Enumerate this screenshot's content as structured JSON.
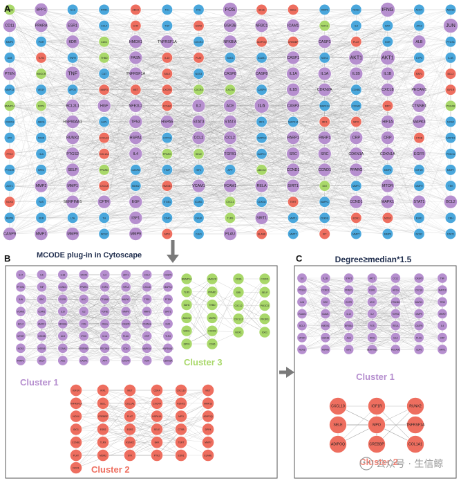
{
  "panels": {
    "a": {
      "letter": "A"
    },
    "b": {
      "letter": "B",
      "caption": "MCODE plug-in in Cytoscape"
    },
    "c": {
      "letter": "C",
      "title": "Degree≥median*1.5"
    }
  },
  "clusters": {
    "cluster1_b": "Cluster 1",
    "cluster2_b": "Cluster 2",
    "cluster3_b": "Cluster 3",
    "cluster1_c": "Cluster 1",
    "cluster2_c": "Cluster 2"
  },
  "watermark": "公众号 · 生信鲸",
  "colors": {
    "purple": "#b68fcf",
    "blue": "#4aa7dc",
    "red": "#ee6e5f",
    "green": "#a9d86a",
    "edge": "#8c8c8c",
    "frame": "#555555",
    "arrow": "#7a7a7a"
  },
  "panel_a": {
    "columns": [
      [
        [
          "CD36",
          "green"
        ],
        [
          "CD11",
          "purple"
        ],
        [
          "MMP2",
          "blue"
        ],
        [
          "ALB",
          "blue"
        ],
        [
          "PTEN",
          "purple"
        ],
        [
          "MMP13",
          "blue"
        ],
        [
          "BMMP14",
          "green"
        ],
        [
          "CDKN1",
          "blue"
        ],
        [
          "ATK",
          "blue"
        ],
        [
          "PTK2",
          "red"
        ],
        [
          "PTGDR",
          "blue"
        ],
        [
          "AGT1",
          "blue"
        ],
        [
          "NOX4",
          "red"
        ],
        [
          "RBPM",
          "blue"
        ],
        [
          "CASP9",
          "purple"
        ]
      ],
      [
        [
          "BPP1",
          "purple"
        ],
        [
          "PPARA",
          "purple"
        ],
        [
          "PGR",
          "blue"
        ],
        [
          "TLR4",
          "red"
        ],
        [
          "HMGCR",
          "green"
        ],
        [
          "VEGF",
          "blue"
        ],
        [
          "DPP4",
          "green"
        ],
        [
          "ABCA",
          "blue"
        ],
        [
          "FASN",
          "blue"
        ],
        [
          "HLA",
          "blue"
        ],
        [
          "NFE2",
          "blue"
        ],
        [
          "MMP2",
          "purple"
        ],
        [
          "FAS",
          "blue"
        ],
        [
          "KDR",
          "blue"
        ],
        [
          "MMP1",
          "purple"
        ]
      ],
      [
        [
          "IL18",
          "blue"
        ],
        [
          "ESR1",
          "purple"
        ],
        [
          "KDR",
          "purple"
        ],
        [
          "TNFR",
          "blue"
        ],
        [
          "TNF",
          "purple"
        ],
        [
          "APOE",
          "blue"
        ],
        [
          "BCL2L1",
          "purple"
        ],
        [
          "HSP90AA1",
          "purple"
        ],
        [
          "RUNX2",
          "purple"
        ],
        [
          "PTGS2",
          "purple"
        ],
        [
          "SELP",
          "purple"
        ],
        [
          "MMP1",
          "purple"
        ],
        [
          "SERPINE1",
          "purple"
        ],
        [
          "LTA",
          "blue"
        ],
        [
          "MMP9",
          "purple"
        ]
      ],
      [
        [
          "NTRK",
          "blue"
        ],
        [
          "CCL4",
          "blue"
        ],
        [
          "CAV1",
          "green"
        ],
        [
          "THBD",
          "green"
        ],
        [
          "CAT",
          "blue"
        ],
        [
          "MMP3",
          "red"
        ],
        [
          "HGF",
          "purple"
        ],
        [
          "ALPL",
          "blue"
        ],
        [
          "CXCL10",
          "red"
        ],
        [
          "COL1A1",
          "red"
        ],
        [
          "PPARD",
          "green"
        ],
        [
          "CXCL8",
          "red"
        ],
        [
          "CFTR",
          "purple"
        ],
        [
          "TH",
          "blue"
        ],
        [
          "NOS2",
          "blue"
        ]
      ],
      [
        [
          "ABCA",
          "red"
        ],
        [
          "CHK",
          "red"
        ],
        [
          "HMOX1",
          "purple"
        ],
        [
          "FASN",
          "purple"
        ],
        [
          "TNFRSF1A",
          "purple"
        ],
        [
          "MET",
          "red"
        ],
        [
          "NFE2L2",
          "purple"
        ],
        [
          "TP53",
          "purple"
        ],
        [
          "HSPA1",
          "purple"
        ],
        [
          "IL4",
          "purple"
        ],
        [
          "CASP8",
          "blue"
        ],
        [
          "MDM2",
          "blue"
        ],
        [
          "EGF",
          "purple"
        ],
        [
          "IGF1",
          "purple"
        ],
        [
          "MMP9",
          "purple"
        ]
      ],
      [
        [
          "TK1",
          "blue"
        ],
        [
          "TGF",
          "blue"
        ],
        [
          "TNFRSF1A",
          "purple"
        ],
        [
          "IL10",
          "red"
        ],
        [
          "SELE",
          "red"
        ],
        [
          "CXCR4",
          "red"
        ],
        [
          "CCNA2",
          "red"
        ],
        [
          "HSPA5",
          "purple"
        ],
        [
          "CYP19",
          "blue"
        ],
        [
          "PPARG",
          "green"
        ],
        [
          "TIMP",
          "blue"
        ],
        [
          "HMGB1",
          "red"
        ],
        [
          "ITGB1",
          "blue"
        ],
        [
          "CD40",
          "blue"
        ],
        [
          "MPO",
          "red"
        ]
      ],
      [
        [
          "FN1",
          "blue"
        ],
        [
          "ESR2",
          "red"
        ],
        [
          "CXCR4",
          "blue"
        ],
        [
          "PLAT",
          "red"
        ],
        [
          "NOS3",
          "blue"
        ],
        [
          "CXCR4",
          "green"
        ],
        [
          "IL2",
          "purple"
        ],
        [
          "STAT3",
          "purple"
        ],
        [
          "CCL2",
          "purple"
        ],
        [
          "SELE",
          "green"
        ],
        [
          "HIF1",
          "blue"
        ],
        [
          "VCAM1",
          "purple"
        ],
        [
          "ICAM1",
          "blue"
        ],
        [
          "CHUK",
          "blue"
        ],
        [
          "CAV1",
          "blue"
        ]
      ],
      [
        [
          "FOS",
          "purple"
        ],
        [
          "GSK3B",
          "purple"
        ],
        [
          "NFKBIA",
          "purple"
        ],
        [
          "SOD1",
          "blue"
        ],
        [
          "CASP8",
          "purple"
        ],
        [
          "CXCR4",
          "green"
        ],
        [
          "ACE",
          "purple"
        ],
        [
          "STAT3",
          "purple"
        ],
        [
          "CCL2",
          "purple"
        ],
        [
          "TGFB1",
          "purple"
        ],
        [
          "APP",
          "blue"
        ],
        [
          "VCAM1",
          "purple"
        ],
        [
          "CXCL1",
          "green"
        ],
        [
          "TLR9",
          "green"
        ],
        [
          "PLAU",
          "purple"
        ]
      ],
      [
        [
          "SELE",
          "red"
        ],
        [
          "NR3C1",
          "purple"
        ],
        [
          "ADIPOQ",
          "red"
        ],
        [
          "ICAM1",
          "blue"
        ],
        [
          "CASP8",
          "purple"
        ],
        [
          "CASP9",
          "blue"
        ],
        [
          "IL6",
          "purple"
        ],
        [
          "IRF1",
          "blue"
        ],
        [
          "MAPK8",
          "blue"
        ],
        [
          "MAPK1",
          "blue"
        ],
        [
          "ABCG2",
          "green"
        ],
        [
          "RELA",
          "purple"
        ],
        [
          "CDKN2",
          "blue"
        ],
        [
          "SIRT1",
          "purple"
        ],
        [
          "ELANE",
          "red"
        ]
      ],
      [
        [
          "SELE",
          "red"
        ],
        [
          "ICAM1",
          "purple"
        ],
        [
          "CREBBP",
          "red"
        ],
        [
          "CASP1",
          "purple"
        ],
        [
          "IL1A",
          "purple"
        ],
        [
          "IL1B",
          "purple"
        ],
        [
          "CASP3",
          "purple"
        ],
        [
          "MAPK14",
          "blue"
        ],
        [
          "PARP1",
          "purple"
        ],
        [
          "SRC",
          "purple"
        ],
        [
          "CCND1",
          "purple"
        ],
        [
          "SIRT1",
          "purple"
        ],
        [
          "TERT",
          "red"
        ],
        [
          "MMP1",
          "blue"
        ],
        [
          "MMP7",
          "blue"
        ]
      ],
      [
        [
          "MMP9",
          "blue"
        ],
        [
          "NOX1",
          "green"
        ],
        [
          "CASP1",
          "purple"
        ],
        [
          "NOS1",
          "blue"
        ],
        [
          "IL1A",
          "purple"
        ],
        [
          "CDKN2A",
          "purple"
        ],
        [
          "MAPK14",
          "blue"
        ],
        [
          "IRF1",
          "red"
        ],
        [
          "PARP1",
          "purple"
        ],
        [
          "SRC",
          "purple"
        ],
        [
          "CCND1",
          "purple"
        ],
        [
          "IDO",
          "green"
        ],
        [
          "MAPK1",
          "blue"
        ],
        [
          "CDKN1",
          "blue"
        ],
        [
          "KIT",
          "red"
        ]
      ],
      [
        [
          "NOS3",
          "blue"
        ],
        [
          "IL8",
          "blue"
        ],
        [
          "PLAT",
          "red"
        ],
        [
          "AKT1",
          "purple"
        ],
        [
          "IL1B",
          "purple"
        ],
        [
          "CCNB1",
          "blue"
        ],
        [
          "CCNA2",
          "blue"
        ],
        [
          "MPO",
          "red"
        ],
        [
          "CRP",
          "purple"
        ],
        [
          "CDKN1A",
          "purple"
        ],
        [
          "PPARG",
          "purple"
        ],
        [
          "MMP1",
          "blue"
        ],
        [
          "CCND1",
          "purple"
        ],
        [
          "EDN1",
          "red"
        ],
        [
          "MMP7",
          "blue"
        ]
      ],
      [
        [
          "IFNG",
          "purple"
        ],
        [
          "BAX",
          "blue"
        ],
        [
          "KDR",
          "blue"
        ],
        [
          "AKT1",
          "purple"
        ],
        [
          "IL1B",
          "purple"
        ],
        [
          "CXCL8",
          "purple"
        ],
        [
          "MPO",
          "red"
        ],
        [
          "HIF1A",
          "purple"
        ],
        [
          "CRP",
          "purple"
        ],
        [
          "CDKN1A",
          "purple"
        ],
        [
          "MMP3",
          "blue"
        ],
        [
          "MTOR",
          "purple"
        ],
        [
          "MAPK1",
          "purple"
        ],
        [
          "NOS2",
          "red"
        ],
        [
          "MMP9",
          "blue"
        ]
      ],
      [
        [
          "AHCY",
          "blue"
        ],
        [
          "JAK2",
          "blue"
        ],
        [
          "ALB",
          "purple"
        ],
        [
          "CYP3",
          "blue"
        ],
        [
          "RAF1",
          "red"
        ],
        [
          "PECAM1",
          "purple"
        ],
        [
          "CTNNB1",
          "purple"
        ],
        [
          "MAPK3",
          "purple"
        ],
        [
          "CTSB",
          "red"
        ],
        [
          "EGFR",
          "purple"
        ],
        [
          "IGF1R",
          "blue"
        ],
        [
          "MMP2",
          "blue"
        ],
        [
          "STAT1",
          "purple"
        ],
        [
          "ESR1",
          "blue"
        ],
        [
          "NOS2",
          "blue"
        ]
      ],
      [
        [
          "ABCB1",
          "blue"
        ],
        [
          "JUN",
          "purple"
        ],
        [
          "PTGS1",
          "blue"
        ],
        [
          "IL1B",
          "blue"
        ],
        [
          "BCL2",
          "red"
        ],
        [
          "IGF1R",
          "red"
        ],
        [
          "PDGFB",
          "green"
        ],
        [
          "NOS2",
          "blue"
        ],
        [
          "MAPK3",
          "blue"
        ],
        [
          "PRKCA",
          "blue"
        ],
        [
          "MMP7",
          "blue"
        ],
        [
          "TEK",
          "blue"
        ],
        [
          "BCL2",
          "purple"
        ],
        [
          "CRH",
          "blue"
        ],
        [
          "STAT1",
          "blue"
        ]
      ]
    ]
  },
  "panel_b": {
    "cluster1_grid": [
      [
        "IL17",
        "IL6",
        "IL1B",
        "STAT3",
        "IL4",
        "AKT1",
        "CCL2",
        "CASP3"
      ],
      [
        "PTGS2",
        "TNF",
        "CCND1",
        "PPARG",
        "ESR1",
        "HIF1A",
        "CXCL8",
        "MAPK3"
      ],
      [
        "JUN",
        "SRC",
        "EGFR",
        "MYC",
        "CTNNB1",
        "MAPK1",
        "TP53",
        "PTEN"
      ],
      [
        "VCAM1",
        "ICAM1",
        "IL10",
        "IL2",
        "TGFB1",
        "MMP9",
        "MMP2",
        "SIRT1"
      ],
      [
        "BCL2",
        "HMOX1",
        "NFKBIA",
        "FOS",
        "RELA",
        "CASP8",
        "CDKN1A",
        "IGF1"
      ],
      [
        "MTOR",
        "GSK3B",
        "ALB",
        "IFNG",
        "IL1A",
        "PLAU",
        "CRP",
        "TLR4"
      ],
      [
        "NOS3",
        "HSPA5",
        "CCNA2",
        "SERPINE1",
        "PECAM1",
        "CD40",
        "MAPK14",
        "HSP90AA1"
      ],
      [
        "PARP1",
        "SELP",
        "ACE",
        "CASP1",
        "APP",
        "CXCR4",
        "KDR",
        "CDKN2A"
      ]
    ],
    "cluster2_grid": [
      [
        "IGF1R",
        "IRF1",
        "MET",
        "CDK4",
        "CXCL10",
        "MET"
      ],
      [
        "TNFRSF1A",
        "SELL",
        "COL1A1",
        "CXCR4",
        "RUNX2",
        "MMP13"
      ],
      [
        "NOX4",
        "CREBBP",
        "PLAT",
        "HSPA1A",
        "MPO",
        "ADIPOQ"
      ],
      [
        "IDO1",
        "ESR2",
        "ESR2",
        "SELE",
        "CTSB",
        "DPP4"
      ],
      [
        "CCNB1",
        "TLR9",
        "RUNX2",
        "BAX",
        "TERT",
        "MMP7"
      ],
      [
        "PLAT",
        "MDM2",
        "SYK",
        "PTK2",
        "EDN1",
        "ELANE"
      ],
      [
        "NOX1"
      ]
    ],
    "cluster3_cols": [
      [
        "BMMP14",
        "TLR9",
        "SAH1",
        "ABCG2",
        "SOD1",
        "DPP4"
      ],
      [
        "HMGCR",
        "PPARD",
        "THBD",
        "MMP8",
        "CXCR2",
        "CD36"
      ],
      [
        "CD36",
        "SIRI",
        "CXCL2",
        "CXCL12",
        "NOX1"
      ],
      [
        "CXCR1",
        "SELP",
        "PIK3CG",
        "PIK3R1",
        "IDO1"
      ]
    ]
  },
  "panel_c": {
    "cluster1_grid": [
      [
        "IL6",
        "IL1B",
        "STAT3",
        "AKT1",
        "CCL2",
        "CASP3",
        "TNF"
      ],
      [
        "PTGS2",
        "CCND1",
        "PPARG",
        "ESR1",
        "HIF1A",
        "CXCL8",
        "MAPK3"
      ],
      [
        "JUN",
        "SRC",
        "EGFR",
        "MYC",
        "CTNNB1",
        "MAPK1",
        "TP53"
      ],
      [
        "VCAM1",
        "ICAM1",
        "IL10",
        "IL2",
        "TGFB1",
        "MMP9",
        "MMP2"
      ],
      [
        "BCL2",
        "HMOX1",
        "NFKBIA",
        "FOS",
        "RELA",
        "CASP8",
        "IL4"
      ],
      [
        "MTOR",
        "GSK3B",
        "ALB",
        "IFNG",
        "IL1A",
        "PLAU",
        "CRP"
      ],
      [
        "NOS3",
        "HSPA5",
        "IGF1",
        "SERPINE1",
        "PECAM1",
        "CD40",
        "SIRT1"
      ]
    ],
    "cluster2_nodes": [
      [
        "CXCL10",
        "IGF1R",
        "RUNX2"
      ],
      [
        "SELE",
        "MPO",
        "TNFRSF1A"
      ],
      [
        "ADIPOQ",
        "CREBBP",
        "COL1A1"
      ]
    ]
  }
}
